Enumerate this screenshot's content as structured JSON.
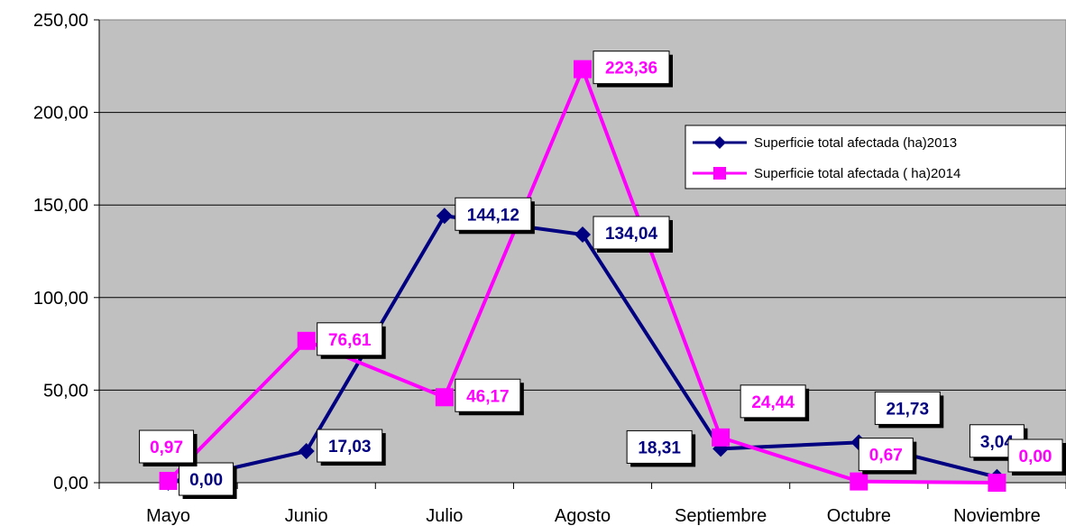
{
  "chart_data": {
    "type": "line",
    "categories": [
      "Mayo",
      "Junio",
      "Julio",
      "Agosto",
      "Septiembre",
      "Octubre",
      "Noviembre"
    ],
    "series": [
      {
        "name": "Superficie total afectada (ha)2013",
        "values": [
          0.0,
          17.03,
          144.12,
          134.04,
          18.31,
          21.73,
          3.04
        ],
        "labels": [
          "0,00",
          "17,03",
          "144,12",
          "134,04",
          "18,31",
          "21,73",
          "3,04"
        ],
        "color": "#000080",
        "marker": "diamond"
      },
      {
        "name": "Superficie total afectada ( ha)2014",
        "values": [
          0.97,
          76.61,
          46.17,
          223.36,
          24.44,
          0.67,
          0.0
        ],
        "labels": [
          "0,97",
          "76,61",
          "46,17",
          "223,36",
          "24,44",
          "0,67",
          "0,00"
        ],
        "color": "#FF00FF",
        "marker": "square"
      }
    ],
    "ylim": [
      0,
      250
    ],
    "yticks": [
      "0,00",
      "50,00",
      "100,00",
      "150,00",
      "200,00",
      "250,00"
    ],
    "plot_background": "#C0C0C0",
    "grid": true,
    "legend_position": "top-right",
    "title": "",
    "xlabel": "",
    "ylabel": ""
  }
}
